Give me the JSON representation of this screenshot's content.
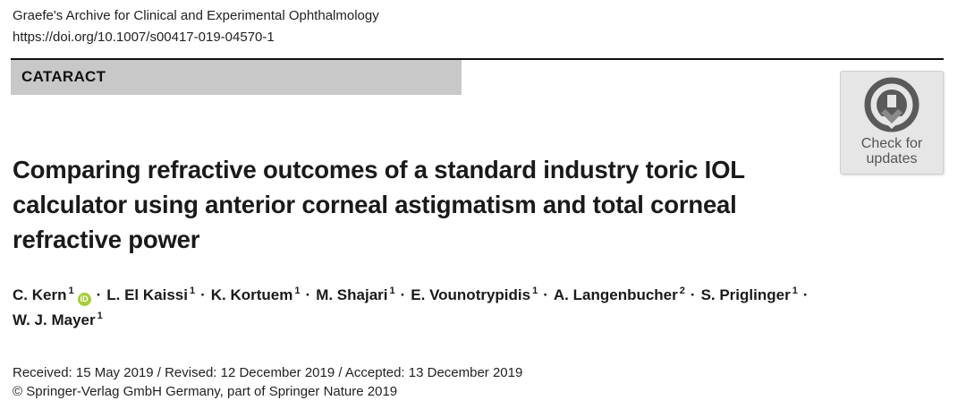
{
  "header": {
    "journal": "Graefe's Archive for Clinical and Experimental Ophthalmology",
    "doi": "https://doi.org/10.1007/s00417-019-04570-1"
  },
  "section": {
    "label": "CATARACT"
  },
  "check_for_updates": {
    "line1": "Check for",
    "line2": "updates",
    "icon": "crossmark-icon"
  },
  "article": {
    "title": "Comparing refractive outcomes of a standard industry toric IOL calculator using anterior corneal astigmatism and total corneal refractive power"
  },
  "authors": [
    {
      "name": "C. Kern",
      "aff": "1",
      "orcid": true
    },
    {
      "name": "L. El Kaissi",
      "aff": "1"
    },
    {
      "name": "K. Kortuem",
      "aff": "1"
    },
    {
      "name": "M. Shajari",
      "aff": "1"
    },
    {
      "name": "E. Vounotrypidis",
      "aff": "1"
    },
    {
      "name": "A. Langenbucher",
      "aff": "2"
    },
    {
      "name": "S. Priglinger",
      "aff": "1"
    },
    {
      "name": "W. J. Mayer",
      "aff": "1"
    }
  ],
  "orcid_badge": "iD",
  "separator": "·",
  "dates": "Received: 15 May 2019 / Revised: 12 December 2019 / Accepted: 13 December 2019",
  "copyright": "© Springer-Verlag GmbH Germany, part of Springer Nature 2019",
  "colors": {
    "orcid": "#a6ce39",
    "section_band": "#c8c8c8",
    "rule": "#111111"
  }
}
